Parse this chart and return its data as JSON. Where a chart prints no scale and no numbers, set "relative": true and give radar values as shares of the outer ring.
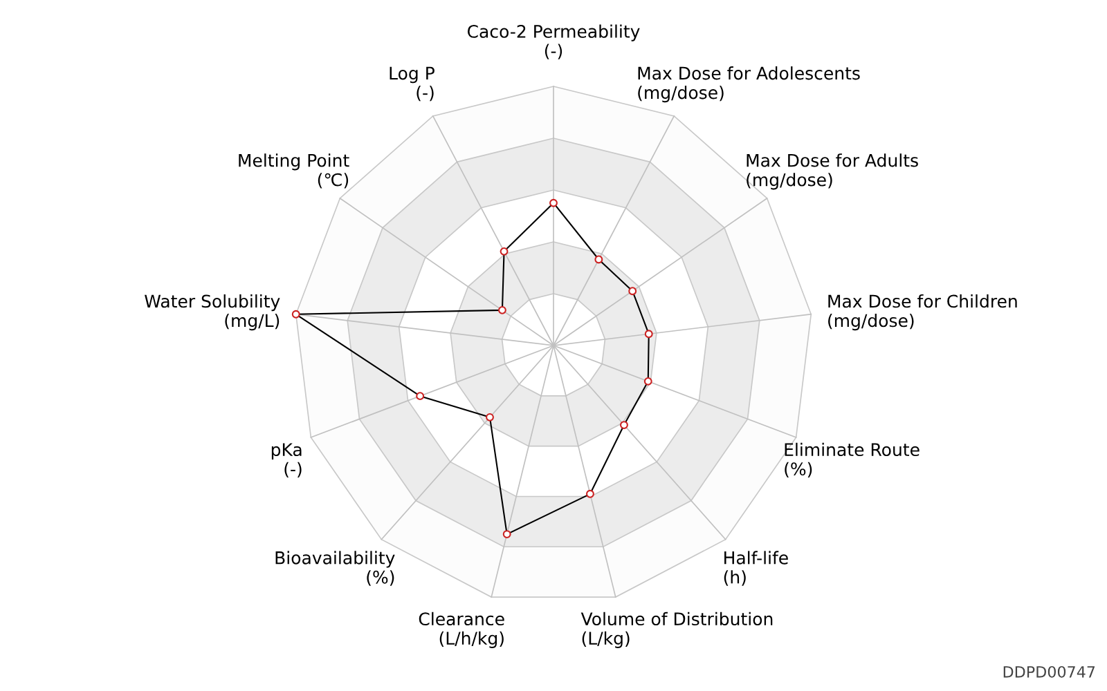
{
  "chart_data": {
    "type": "radar",
    "relative": true,
    "grid": true,
    "marker": "circle",
    "line_style": "solid",
    "categories": [
      "Caco-2 Permeability\n(-)",
      "Max Dose for Adolescents\n(mg/dose)",
      "Max Dose for Adults\n(mg/dose)",
      "Max Dose for Children\n(mg/dose)",
      "Eliminate Route\n(%)",
      "Half-life\n(h)",
      "Volume of Distribution\n(L/kg)",
      "Clearance\n(L/h/kg)",
      "Bioavailability\n(%)",
      "pKa\n(-)",
      "Water Solubility\n(mg/L)",
      "Melting Point\n(℃)",
      "Log P\n(-)"
    ],
    "series": [
      {
        "color": "#000000",
        "values": [
          0.55,
          0.375,
          0.37,
          0.37,
          0.39,
          0.41,
          0.59,
          0.75,
          0.37,
          0.55,
          1.0,
          0.24,
          0.41
        ]
      }
    ],
    "annotations": [
      "DDPD00747"
    ]
  }
}
